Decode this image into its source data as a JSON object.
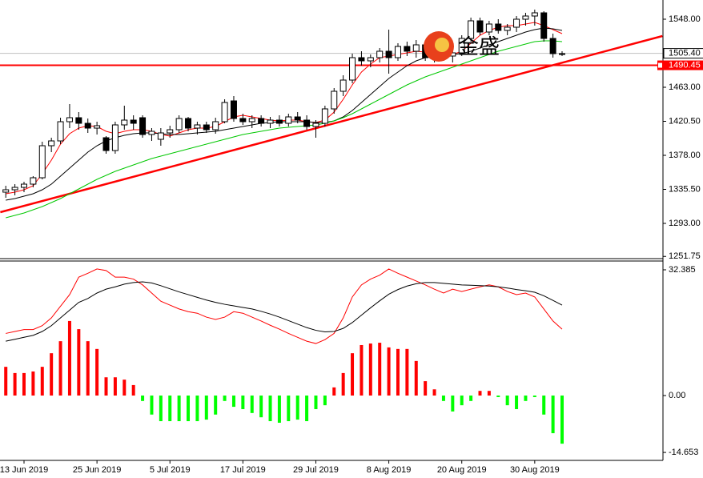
{
  "watermark": "金盛",
  "chart_data": [
    {
      "type": "candlestick",
      "categories": [
        null,
        null,
        "13 Jun 2019",
        null,
        null,
        null,
        null,
        null,
        null,
        null,
        "25 Jun 2019",
        null,
        null,
        null,
        null,
        null,
        null,
        null,
        "5 Jul 2019",
        null,
        null,
        null,
        null,
        null,
        null,
        null,
        "17 Jul 2019",
        null,
        null,
        null,
        null,
        null,
        null,
        null,
        "29 Jul 2019",
        null,
        null,
        null,
        null,
        null,
        null,
        null,
        "8 Aug 2019",
        null,
        null,
        null,
        null,
        null,
        null,
        null,
        "20 Aug 2019",
        null,
        null,
        null,
        null,
        null,
        null,
        null,
        "30 Aug 2019",
        null,
        null,
        null
      ],
      "open": [
        1332,
        1335,
        1338,
        1342,
        1350,
        1390,
        1396,
        1420,
        1425,
        1418,
        1412,
        1400,
        1384,
        1416,
        1422,
        1425,
        1404,
        1398,
        1406,
        1410,
        1424,
        1412,
        1416,
        1410,
        1420,
        1446,
        1424,
        1420,
        1424,
        1418,
        1422,
        1418,
        1426,
        1422,
        1414,
        1418,
        1436,
        1458,
        1472,
        1500,
        1496,
        1500,
        1508,
        1500,
        1514,
        1508,
        1516,
        1500,
        1506,
        1502,
        1506,
        1524,
        1546,
        1532,
        1542,
        1534,
        1538,
        1548,
        1552,
        1556,
        1524,
        1505
      ],
      "high": [
        1340,
        1342,
        1345,
        1352,
        1395,
        1400,
        1425,
        1442,
        1432,
        1424,
        1420,
        1402,
        1420,
        1440,
        1428,
        1428,
        1412,
        1412,
        1415,
        1428,
        1426,
        1420,
        1420,
        1425,
        1448,
        1452,
        1430,
        1428,
        1428,
        1426,
        1428,
        1430,
        1432,
        1428,
        1422,
        1440,
        1462,
        1478,
        1505,
        1508,
        1504,
        1512,
        1535,
        1518,
        1520,
        1522,
        1520,
        1510,
        1512,
        1510,
        1528,
        1550,
        1550,
        1546,
        1548,
        1542,
        1552,
        1556,
        1560,
        1558,
        1530,
        1508
      ],
      "low": [
        1325,
        1328,
        1332,
        1338,
        1348,
        1382,
        1392,
        1412,
        1410,
        1406,
        1404,
        1380,
        1380,
        1410,
        1410,
        1400,
        1396,
        1390,
        1400,
        1406,
        1408,
        1404,
        1406,
        1405,
        1418,
        1420,
        1416,
        1412,
        1414,
        1412,
        1414,
        1414,
        1418,
        1410,
        1400,
        1414,
        1430,
        1452,
        1468,
        1490,
        1488,
        1494,
        1480,
        1496,
        1502,
        1500,
        1496,
        1494,
        1496,
        1494,
        1502,
        1520,
        1528,
        1528,
        1530,
        1528,
        1532,
        1540,
        1540,
        1520,
        1500,
        1502
      ],
      "close": [
        1335,
        1338,
        1342,
        1350,
        1390,
        1396,
        1420,
        1425,
        1418,
        1412,
        1415,
        1384,
        1416,
        1422,
        1418,
        1404,
        1408,
        1406,
        1410,
        1424,
        1412,
        1416,
        1410,
        1420,
        1444,
        1424,
        1420,
        1424,
        1418,
        1422,
        1418,
        1426,
        1422,
        1414,
        1418,
        1436,
        1458,
        1472,
        1500,
        1496,
        1500,
        1508,
        1500,
        1514,
        1508,
        1516,
        1500,
        1506,
        1502,
        1506,
        1524,
        1546,
        1532,
        1542,
        1534,
        1538,
        1548,
        1552,
        1556,
        1524,
        1505,
        1505
      ],
      "up_color": "#ffffff",
      "down_color": "#000000",
      "series": [
        {
          "color": "#ff0000",
          "values": [
            1330,
            1332,
            1335,
            1340,
            1355,
            1372,
            1392,
            1405,
            1412,
            1415,
            1414,
            1408,
            1405,
            1408,
            1410,
            1410,
            1408,
            1404,
            1402,
            1406,
            1410,
            1412,
            1412,
            1414,
            1420,
            1426,
            1428,
            1426,
            1424,
            1422,
            1421,
            1422,
            1422,
            1420,
            1419,
            1422,
            1432,
            1448,
            1466,
            1482,
            1492,
            1500,
            1502,
            1504,
            1506,
            1508,
            1507,
            1506,
            1505,
            1504,
            1508,
            1518,
            1528,
            1534,
            1538,
            1540,
            1540,
            1542,
            1544,
            1540,
            1535,
            1530
          ]
        },
        {
          "color": "#000000",
          "values": [
            1322,
            1324,
            1327,
            1330,
            1335,
            1342,
            1352,
            1362,
            1372,
            1382,
            1390,
            1396,
            1400,
            1403,
            1405,
            1406,
            1406,
            1405,
            1404,
            1404,
            1405,
            1406,
            1407,
            1408,
            1410,
            1412,
            1414,
            1416,
            1418,
            1419,
            1420,
            1420,
            1420,
            1420,
            1419,
            1419,
            1421,
            1426,
            1434,
            1444,
            1454,
            1464,
            1474,
            1482,
            1490,
            1496,
            1500,
            1502,
            1503,
            1504,
            1505,
            1508,
            1512,
            1516,
            1520,
            1524,
            1528,
            1532,
            1535,
            1537,
            1536,
            1534
          ]
        },
        {
          "color": "#00c800",
          "values": [
            1300,
            1303,
            1306,
            1310,
            1314,
            1319,
            1324,
            1330,
            1336,
            1342,
            1348,
            1353,
            1358,
            1362,
            1366,
            1370,
            1374,
            1377,
            1380,
            1383,
            1386,
            1389,
            1392,
            1395,
            1398,
            1401,
            1404,
            1406,
            1408,
            1410,
            1412,
            1413,
            1414,
            1415,
            1416,
            1418,
            1421,
            1425,
            1430,
            1436,
            1442,
            1448,
            1454,
            1460,
            1466,
            1471,
            1476,
            1480,
            1484,
            1488,
            1492,
            1496,
            1500,
            1504,
            1508,
            1511,
            1514,
            1517,
            1520,
            1521,
            1521,
            1520
          ]
        }
      ],
      "ylim": [
        1250,
        1572
      ],
      "yticks": [
        {
          "value": 1548,
          "label": "1548.00"
        },
        {
          "value": 1463,
          "label": "1463.00"
        },
        {
          "value": 1420.5,
          "label": "1420.50"
        },
        {
          "value": 1378,
          "label": "1378.00"
        },
        {
          "value": 1335.5,
          "label": "1335.50"
        },
        {
          "value": 1293,
          "label": "1293.00"
        },
        {
          "value": 1251.75,
          "label": "1251.75"
        }
      ],
      "trendline": {
        "x": [
          -0.6,
          72
        ],
        "values": [
          1307,
          1527
        ],
        "color": "#ff0000"
      },
      "hline": {
        "value": 1490.45,
        "label": "1490.45",
        "color": "#ff0000"
      },
      "bid": {
        "value": 1505.4,
        "label": "1505.40",
        "color": "#c0c0c0"
      }
    },
    {
      "type": "bar",
      "values": [
        7.4,
        5.8,
        5.8,
        6.2,
        7.4,
        10.9,
        14,
        19.2,
        17.1,
        14,
        12,
        4.7,
        4.7,
        4.1,
        2.7,
        -1.4,
        -4.9,
        -6.6,
        -6.6,
        -6.6,
        -6.6,
        -6.6,
        -6.2,
        -4.9,
        -1.4,
        -2.9,
        -3.5,
        -4.5,
        -5.6,
        -6.6,
        -7,
        -6.6,
        -6.2,
        -6.6,
        -3.5,
        -2.5,
        2.1,
        5.8,
        10.9,
        13,
        13.4,
        13.6,
        12.4,
        12,
        12,
        8.9,
        3.7,
        1.6,
        -1.4,
        -4.1,
        -2.5,
        -1.4,
        1.2,
        1.2,
        -0.4,
        -2.5,
        -3.5,
        -1.4,
        -0.4,
        -4.9,
        -9.7,
        -12.4
      ],
      "positive_color": "#ff0000",
      "negative_color": "#00ff00",
      "series": [
        {
          "color": "#ff0000",
          "values": [
            16,
            16.5,
            17,
            17,
            18,
            20,
            23,
            26,
            30.5,
            31.5,
            32.6,
            32.2,
            30.5,
            30.5,
            30,
            28.5,
            26.4,
            24.3,
            23.3,
            22.3,
            21.6,
            21.2,
            20.2,
            19.6,
            20.2,
            21.6,
            21.2,
            20.2,
            19.2,
            18.1,
            17.1,
            16,
            15,
            14,
            13.4,
            14.4,
            16,
            20,
            25.4,
            28.5,
            30,
            31,
            32.6,
            31.5,
            30.5,
            29.5,
            28.5,
            27.4,
            26.4,
            27.4,
            26.8,
            27.4,
            28,
            28.5,
            28,
            26.8,
            26,
            26.4,
            25.4,
            22.3,
            19.2,
            17.1
          ]
        },
        {
          "color": "#000000",
          "values": [
            14,
            14.5,
            15,
            15.5,
            16.5,
            18,
            20,
            22,
            24,
            25,
            26.4,
            27.4,
            28,
            28.7,
            29.1,
            29.3,
            29,
            28.3,
            27.5,
            26.7,
            26,
            25.3,
            24.6,
            24,
            23.5,
            23.1,
            22.7,
            22.3,
            21.7,
            21,
            20.2,
            19.3,
            18.4,
            17.5,
            16.8,
            16.4,
            16.5,
            17.3,
            18.8,
            20.7,
            22.6,
            24.4,
            26.1,
            27.3,
            28.2,
            28.8,
            29.1,
            29.1,
            28.9,
            28.7,
            28.5,
            28.4,
            28.3,
            28.2,
            28,
            27.7,
            27.3,
            27,
            26.6,
            25.7,
            24.5,
            23.3
          ]
        }
      ],
      "ylim": [
        -16.7,
        34.65
      ],
      "yticks": [
        32.385,
        {
          "value": 0,
          "label": "0.00"
        },
        -14.653
      ]
    }
  ]
}
